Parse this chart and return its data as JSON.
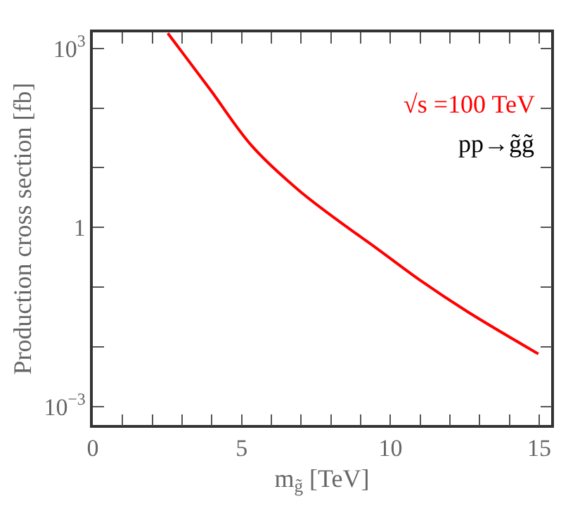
{
  "chart_data": {
    "type": "line",
    "xlabel": "m$_{g̃}$ [TeV]",
    "ylabel": "Production cross section [fb]",
    "annotations": [
      "√s =100 TeV",
      "pp→g̃g̃"
    ],
    "x": [
      2.52,
      3.93,
      5.34,
      6.92,
      8.49,
      9.43,
      11.0,
      12.58,
      14.97
    ],
    "series": [
      {
        "color": "#ff0000",
        "values": [
          1800,
          209,
          23.4,
          4.2,
          1.06,
          0.49,
          0.13,
          0.039,
          0.0076
        ]
      }
    ],
    "xlim": [
      0,
      15.4
    ],
    "ylim": [
      0.00049,
      1860
    ],
    "log": "y",
    "legend": false,
    "marker": "none",
    "line_style": "solid",
    "xticks": [
      0,
      {
        "value": 1,
        "label": null
      },
      {
        "value": 2,
        "label": null
      },
      {
        "value": 3,
        "label": null
      },
      {
        "value": 4,
        "label": null
      },
      5,
      {
        "value": 6,
        "label": null
      },
      {
        "value": 7,
        "label": null
      },
      {
        "value": 8,
        "label": null
      },
      {
        "value": 9,
        "label": null
      },
      10,
      {
        "value": 11,
        "label": null
      },
      {
        "value": 12,
        "label": null
      },
      {
        "value": 13,
        "label": null
      },
      {
        "value": 14,
        "label": null
      },
      15
    ],
    "yticks": [
      {
        "value": 0.001,
        "label": "10$^{−3}$"
      },
      {
        "value": 0.01,
        "label": null
      },
      {
        "value": 0.1,
        "label": null
      },
      1,
      {
        "value": 10,
        "label": null
      },
      {
        "value": 100,
        "label": null
      },
      {
        "value": 1000,
        "label": "10$^{3}$"
      }
    ]
  }
}
